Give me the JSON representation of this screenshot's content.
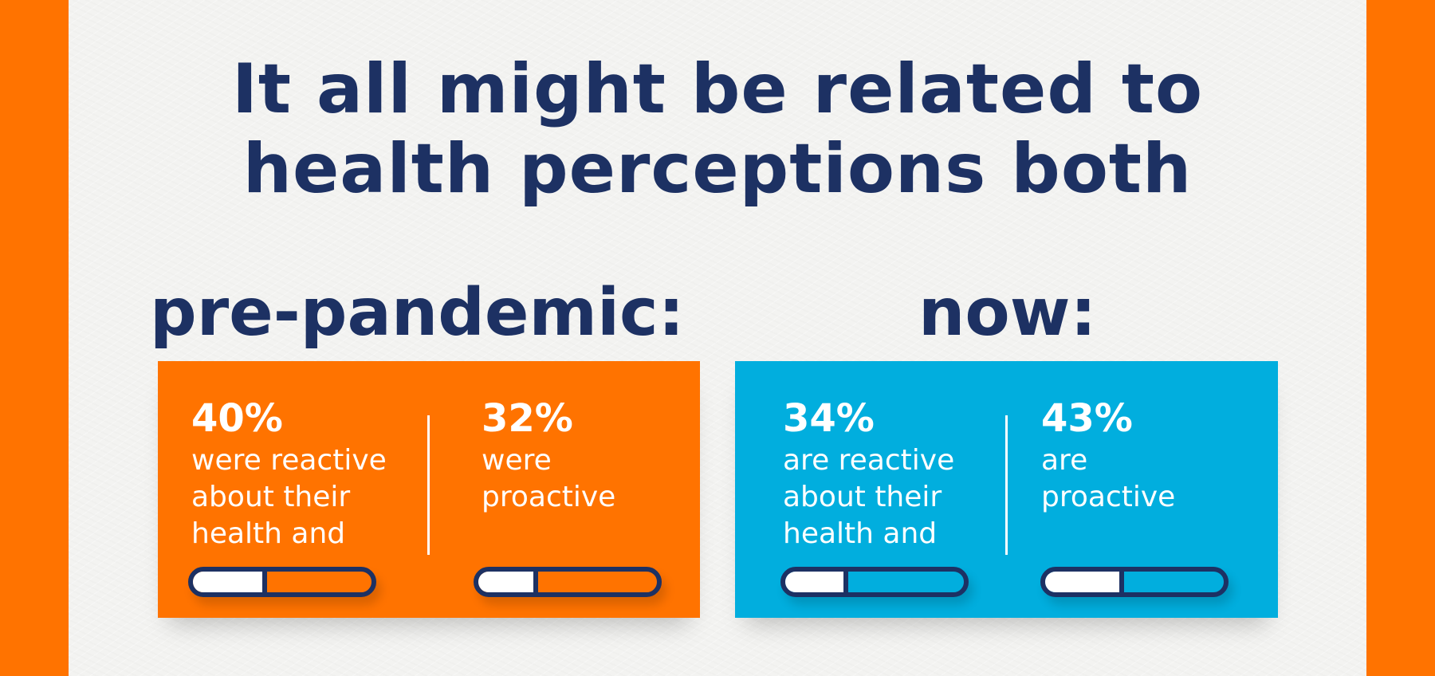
{
  "headline": {
    "line1": "It all might be related to",
    "line2": "health perceptions both"
  },
  "colors": {
    "frame": "#ff7300",
    "paper": "#f3f3f1",
    "navy": "#1d3163",
    "orange_panel": "#ff7300",
    "blue_panel": "#01aede",
    "text_on_panel": "#ffffff"
  },
  "sections": [
    {
      "label": "pre-pandemic:",
      "stats": [
        {
          "percent": "40%",
          "description": "were reactive\nabout their\nhealth and",
          "bar_fill": 0.4,
          "bar_fill_color": "#ff7300"
        },
        {
          "percent": "32%",
          "description": "were\nproactive",
          "bar_fill": 0.32,
          "bar_fill_color": "#ff7300"
        }
      ]
    },
    {
      "label": "now:",
      "stats": [
        {
          "percent": "34%",
          "description": "are reactive\nabout their\nhealth and",
          "bar_fill": 0.34,
          "bar_fill_color": "#01aede"
        },
        {
          "percent": "43%",
          "description": "are\nproactive",
          "bar_fill": 0.43,
          "bar_fill_color": "#01aede"
        }
      ]
    }
  ]
}
